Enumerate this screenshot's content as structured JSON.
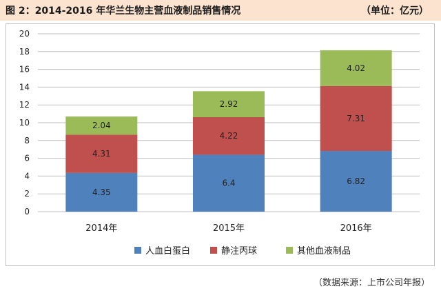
{
  "header": {
    "title": "图 2：2014-2016 年华兰生物主营血液制品销售情况",
    "unit": "（单位：亿元）"
  },
  "footer": {
    "source": "（数据来源：上市公司年报）"
  },
  "colors": {
    "albumin": "#4f81bd",
    "ivig": "#c0504d",
    "other": "#9bbb59"
  },
  "chart_data": {
    "type": "bar",
    "stacked": true,
    "categories": [
      "2014年",
      "2015年",
      "2016年"
    ],
    "series": [
      {
        "name": "人血白蛋白",
        "values": [
          4.35,
          6.4,
          6.82
        ],
        "labels": [
          "4.35",
          "6.4",
          "6.82"
        ]
      },
      {
        "name": "静注丙球",
        "values": [
          4.31,
          4.22,
          7.31
        ],
        "labels": [
          "4.31",
          "4.22",
          "7.31"
        ]
      },
      {
        "name": "其他血液制品",
        "values": [
          2.04,
          2.92,
          4.02
        ],
        "labels": [
          "2.04",
          "2.92",
          "4.02"
        ]
      }
    ],
    "ylim": [
      0,
      20
    ],
    "yticks": [
      "0",
      "2",
      "4",
      "6",
      "8",
      "10",
      "12",
      "14",
      "16",
      "18",
      "20"
    ],
    "grid": true,
    "legend_position": "bottom"
  }
}
